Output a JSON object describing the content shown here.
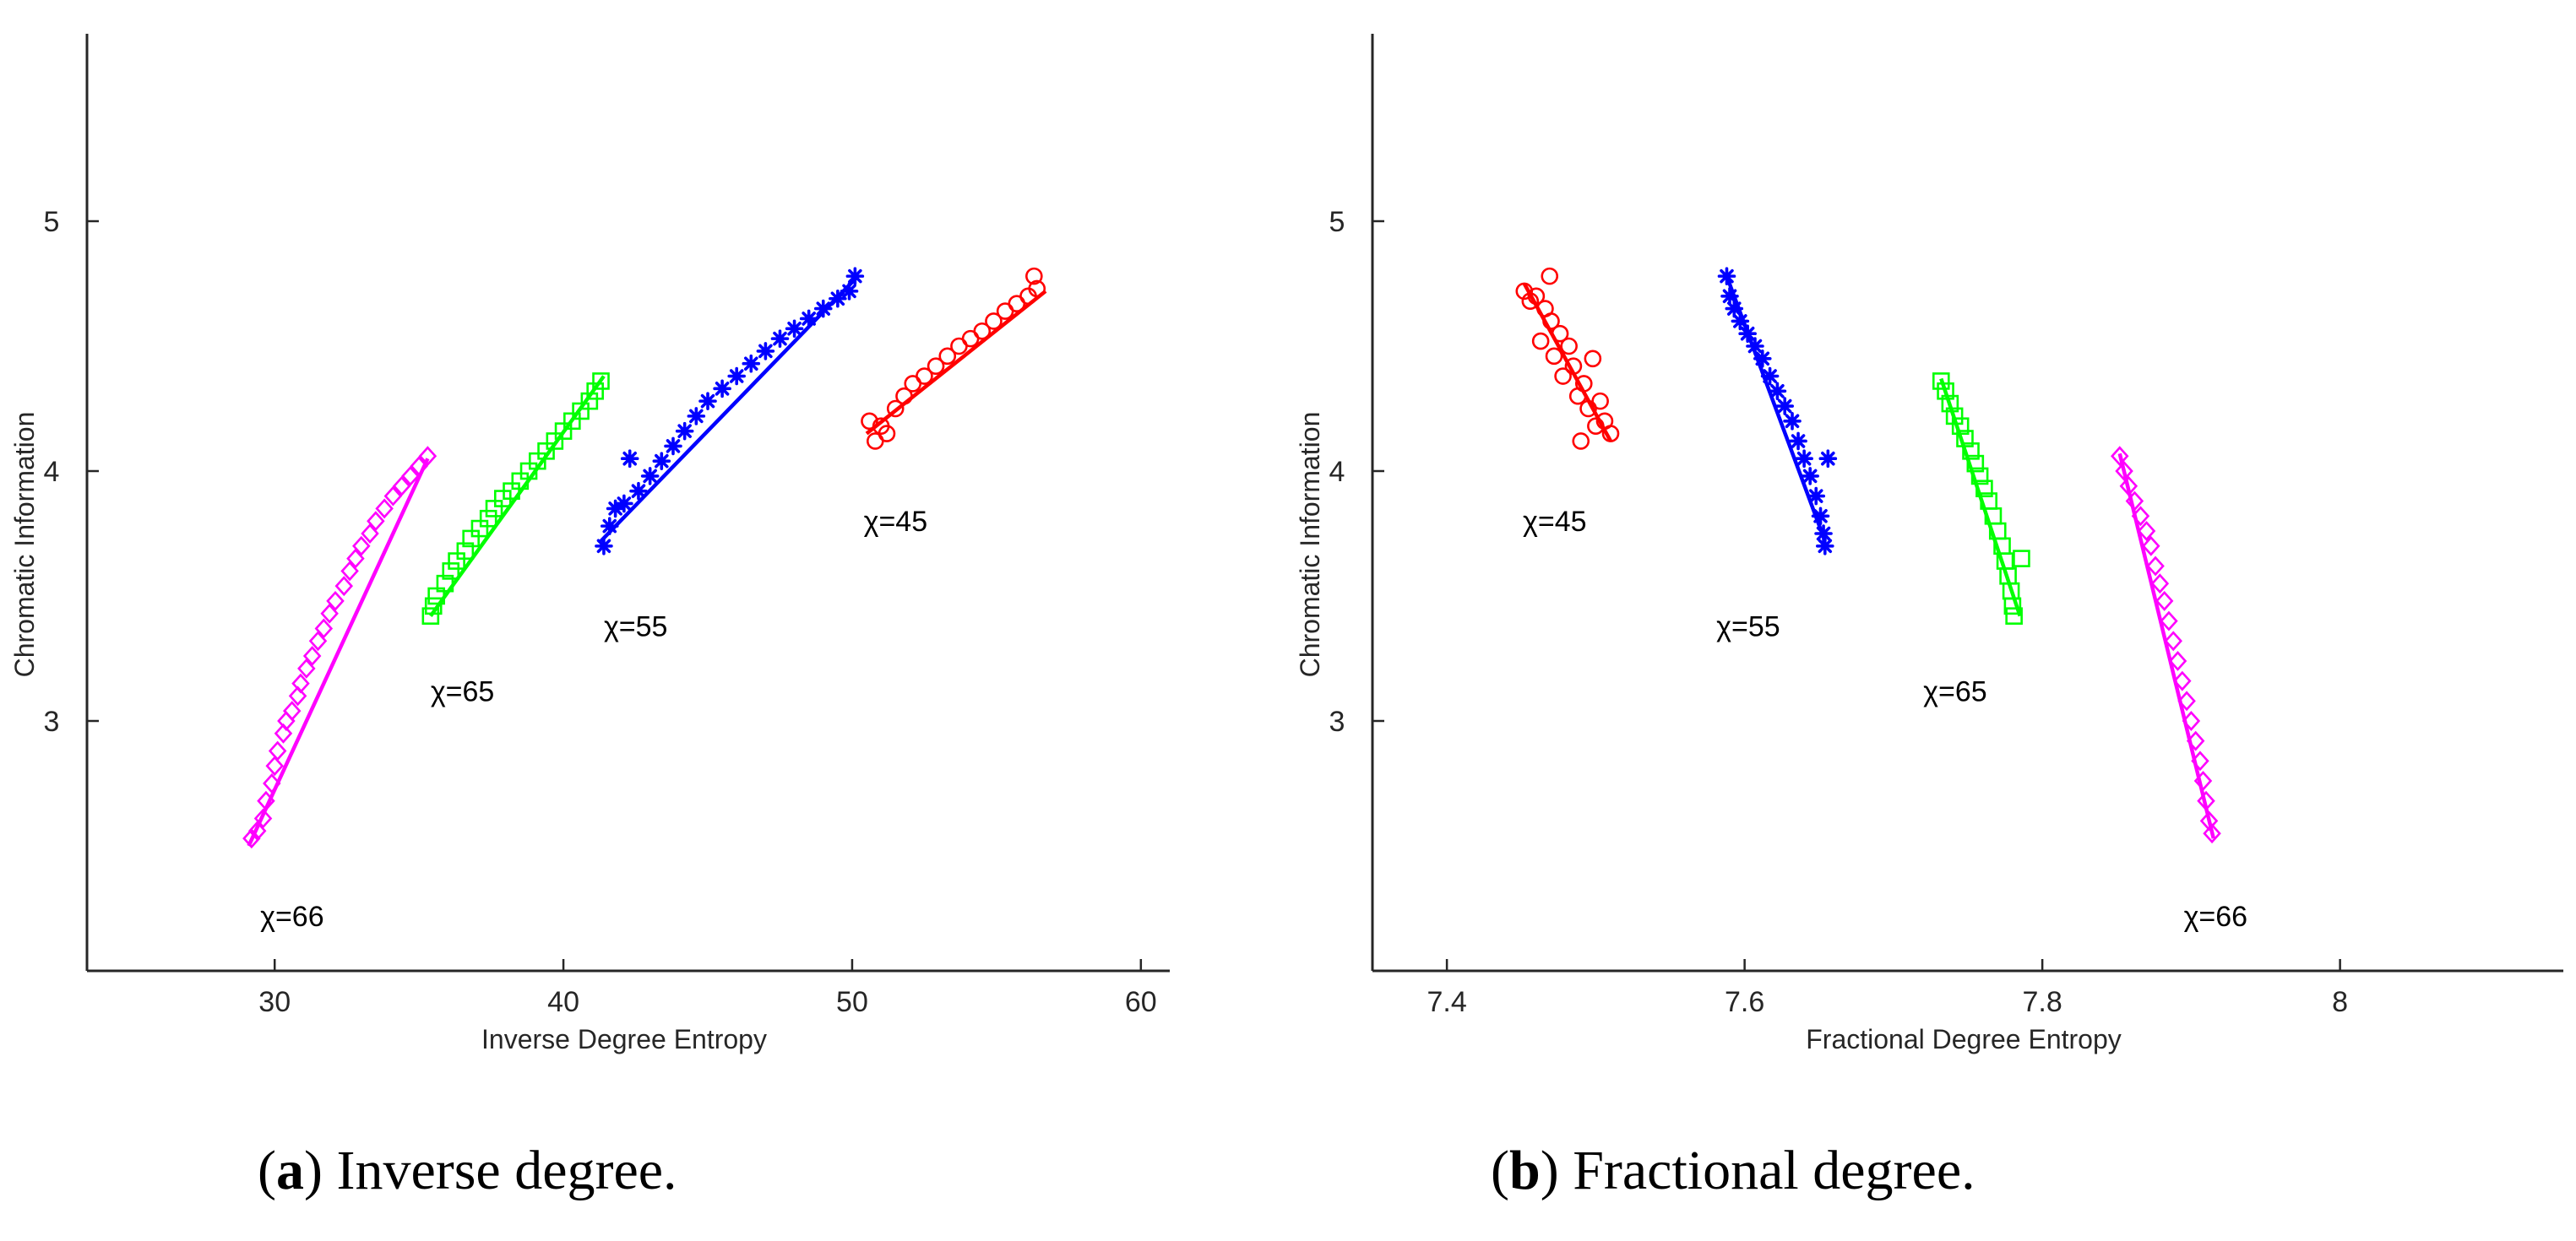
{
  "chart_data": [
    {
      "type": "scatter",
      "caption": {
        "tag": "a",
        "text": "Inverse degree."
      },
      "xlabel": "Inverse Degree Entropy",
      "ylabel": "Chromatic Information",
      "xlim": [
        23.5,
        61
      ],
      "ylim": [
        2,
        5.75
      ],
      "xticks": [
        30,
        40,
        50,
        60
      ],
      "yticks": [
        3,
        4,
        5
      ],
      "xtick_labels": [
        "30",
        "40",
        "50",
        "60"
      ],
      "ytick_labels": [
        "3",
        "4",
        "5"
      ],
      "series": [
        {
          "name": "χ=66",
          "label": "χ=66",
          "marker": "diamond",
          "color": "#ff00ff",
          "label_pos": [
            29.5,
            2.22
          ],
          "fit": [
            [
              29.1,
              2.5
            ],
            [
              35.3,
              4.05
            ]
          ],
          "points": [
            [
              29.2,
              2.53
            ],
            [
              29.4,
              2.56
            ],
            [
              29.6,
              2.61
            ],
            [
              29.7,
              2.68
            ],
            [
              29.9,
              2.75
            ],
            [
              30.0,
              2.82
            ],
            [
              30.1,
              2.88
            ],
            [
              30.3,
              2.95
            ],
            [
              30.4,
              3.0
            ],
            [
              30.6,
              3.04
            ],
            [
              30.8,
              3.1
            ],
            [
              30.9,
              3.15
            ],
            [
              31.1,
              3.21
            ],
            [
              31.3,
              3.26
            ],
            [
              31.5,
              3.32
            ],
            [
              31.7,
              3.37
            ],
            [
              31.9,
              3.43
            ],
            [
              32.1,
              3.48
            ],
            [
              32.4,
              3.54
            ],
            [
              32.6,
              3.6
            ],
            [
              32.8,
              3.65
            ],
            [
              33.0,
              3.7
            ],
            [
              33.3,
              3.75
            ],
            [
              33.5,
              3.8
            ],
            [
              33.8,
              3.85
            ],
            [
              34.1,
              3.9
            ],
            [
              34.4,
              3.94
            ],
            [
              34.7,
              3.98
            ],
            [
              35.0,
              4.02
            ],
            [
              35.3,
              4.06
            ]
          ]
        },
        {
          "name": "χ=65",
          "label": "χ=65",
          "marker": "square",
          "color": "#00ff00",
          "label_pos": [
            35.4,
            3.12
          ],
          "fit": [
            [
              35.4,
              3.42
            ],
            [
              41.4,
              4.38
            ]
          ],
          "points": [
            [
              35.4,
              3.42
            ],
            [
              35.5,
              3.46
            ],
            [
              35.6,
              3.5
            ],
            [
              35.9,
              3.55
            ],
            [
              36.1,
              3.6
            ],
            [
              36.3,
              3.64
            ],
            [
              36.6,
              3.68
            ],
            [
              36.8,
              3.73
            ],
            [
              37.1,
              3.77
            ],
            [
              37.4,
              3.81
            ],
            [
              37.6,
              3.85
            ],
            [
              37.9,
              3.89
            ],
            [
              38.2,
              3.92
            ],
            [
              38.5,
              3.96
            ],
            [
              38.8,
              4.0
            ],
            [
              39.1,
              4.04
            ],
            [
              39.4,
              4.08
            ],
            [
              39.7,
              4.12
            ],
            [
              40.0,
              4.16
            ],
            [
              40.3,
              4.2
            ],
            [
              40.6,
              4.24
            ],
            [
              40.9,
              4.28
            ],
            [
              41.1,
              4.32
            ],
            [
              41.3,
              4.36
            ]
          ]
        },
        {
          "name": "χ=55",
          "label": "χ=55",
          "marker": "asterisk",
          "color": "#0000ff",
          "label_pos": [
            41.4,
            3.38
          ],
          "fit": [
            [
              41.3,
              3.72
            ],
            [
              50.2,
              4.78
            ]
          ],
          "points": [
            [
              41.4,
              3.7
            ],
            [
              41.6,
              3.78
            ],
            [
              41.8,
              3.85
            ],
            [
              42.1,
              3.87
            ],
            [
              42.3,
              4.05
            ],
            [
              42.6,
              3.92
            ],
            [
              43.0,
              3.98
            ],
            [
              43.4,
              4.04
            ],
            [
              43.8,
              4.1
            ],
            [
              44.2,
              4.16
            ],
            [
              44.6,
              4.22
            ],
            [
              45.0,
              4.28
            ],
            [
              45.5,
              4.33
            ],
            [
              46.0,
              4.38
            ],
            [
              46.5,
              4.43
            ],
            [
              47.0,
              4.48
            ],
            [
              47.5,
              4.53
            ],
            [
              48.0,
              4.57
            ],
            [
              48.5,
              4.61
            ],
            [
              49.0,
              4.65
            ],
            [
              49.5,
              4.69
            ],
            [
              49.9,
              4.72
            ],
            [
              50.1,
              4.78
            ]
          ]
        },
        {
          "name": "χ=45",
          "label": "χ=45",
          "marker": "circle",
          "color": "#ff0000",
          "label_pos": [
            50.4,
            3.8
          ],
          "fit": [
            [
              50.5,
              4.15
            ],
            [
              56.7,
              4.72
            ]
          ],
          "points": [
            [
              50.6,
              4.2
            ],
            [
              50.8,
              4.12
            ],
            [
              51.0,
              4.18
            ],
            [
              51.2,
              4.15
            ],
            [
              51.5,
              4.25
            ],
            [
              51.8,
              4.3
            ],
            [
              52.1,
              4.35
            ],
            [
              52.5,
              4.38
            ],
            [
              52.9,
              4.42
            ],
            [
              53.3,
              4.46
            ],
            [
              53.7,
              4.5
            ],
            [
              54.1,
              4.53
            ],
            [
              54.5,
              4.56
            ],
            [
              54.9,
              4.6
            ],
            [
              55.3,
              4.64
            ],
            [
              55.7,
              4.67
            ],
            [
              56.1,
              4.7
            ],
            [
              56.4,
              4.73
            ],
            [
              56.3,
              4.78
            ]
          ]
        }
      ]
    },
    {
      "type": "scatter",
      "caption": {
        "tag": "b",
        "text": "Fractional degree."
      },
      "xlabel": "Fractional Degree Entropy",
      "ylabel": "Chromatic Information",
      "xlim": [
        7.35,
        8.15
      ],
      "ylim": [
        2,
        5.75
      ],
      "xticks": [
        7.4,
        7.6,
        7.8,
        8
      ],
      "yticks": [
        3,
        4,
        5
      ],
      "xtick_labels": [
        "7.4",
        "7.6",
        "7.8",
        "8"
      ],
      "ytick_labels": [
        "3",
        "4",
        "5"
      ],
      "series": [
        {
          "name": "χ=45",
          "label": "χ=45",
          "marker": "circle",
          "color": "#ff0000",
          "label_pos": [
            7.451,
            3.8
          ],
          "fit": [
            [
              7.452,
              4.75
            ],
            [
              7.51,
              4.12
            ]
          ],
          "points": [
            [
              7.452,
              4.72
            ],
            [
              7.456,
              4.68
            ],
            [
              7.46,
              4.7
            ],
            [
              7.463,
              4.52
            ],
            [
              7.466,
              4.65
            ],
            [
              7.47,
              4.6
            ],
            [
              7.472,
              4.46
            ],
            [
              7.476,
              4.55
            ],
            [
              7.478,
              4.38
            ],
            [
              7.482,
              4.5
            ],
            [
              7.485,
              4.42
            ],
            [
              7.488,
              4.3
            ],
            [
              7.49,
              4.12
            ],
            [
              7.492,
              4.35
            ],
            [
              7.495,
              4.25
            ],
            [
              7.498,
              4.45
            ],
            [
              7.5,
              4.18
            ],
            [
              7.503,
              4.28
            ],
            [
              7.506,
              4.2
            ],
            [
              7.51,
              4.15
            ],
            [
              7.469,
              4.78
            ]
          ]
        },
        {
          "name": "χ=55",
          "label": "χ=55",
          "marker": "asterisk",
          "color": "#0000ff",
          "label_pos": [
            7.581,
            3.38
          ],
          "fit": [
            [
              7.588,
              4.78
            ],
            [
              7.654,
              3.72
            ]
          ],
          "points": [
            [
              7.588,
              4.78
            ],
            [
              7.59,
              4.7
            ],
            [
              7.593,
              4.65
            ],
            [
              7.597,
              4.6
            ],
            [
              7.602,
              4.55
            ],
            [
              7.607,
              4.5
            ],
            [
              7.612,
              4.45
            ],
            [
              7.617,
              4.38
            ],
            [
              7.622,
              4.32
            ],
            [
              7.627,
              4.26
            ],
            [
              7.632,
              4.2
            ],
            [
              7.636,
              4.12
            ],
            [
              7.64,
              4.05
            ],
            [
              7.644,
              3.98
            ],
            [
              7.648,
              3.9
            ],
            [
              7.651,
              3.82
            ],
            [
              7.653,
              3.75
            ],
            [
              7.654,
              3.7
            ],
            [
              7.656,
              4.05
            ]
          ]
        },
        {
          "name": "χ=65",
          "label": "χ=65",
          "marker": "square",
          "color": "#00ff00",
          "label_pos": [
            7.72,
            3.12
          ],
          "fit": [
            [
              7.732,
              4.37
            ],
            [
              7.785,
              3.42
            ]
          ],
          "points": [
            [
              7.732,
              4.36
            ],
            [
              7.735,
              4.32
            ],
            [
              7.738,
              4.27
            ],
            [
              7.741,
              4.22
            ],
            [
              7.745,
              4.18
            ],
            [
              7.748,
              4.13
            ],
            [
              7.752,
              4.08
            ],
            [
              7.755,
              4.03
            ],
            [
              7.758,
              3.98
            ],
            [
              7.761,
              3.93
            ],
            [
              7.764,
              3.88
            ],
            [
              7.767,
              3.82
            ],
            [
              7.77,
              3.76
            ],
            [
              7.773,
              3.7
            ],
            [
              7.775,
              3.64
            ],
            [
              7.777,
              3.58
            ],
            [
              7.779,
              3.52
            ],
            [
              7.78,
              3.46
            ],
            [
              7.781,
              3.42
            ],
            [
              7.786,
              3.65
            ]
          ]
        },
        {
          "name": "χ=66",
          "label": "χ=66",
          "marker": "diamond",
          "color": "#ff00ff",
          "label_pos": [
            7.895,
            2.22
          ],
          "fit": [
            [
              7.852,
              4.07
            ],
            [
              7.915,
              2.53
            ]
          ],
          "points": [
            [
              7.852,
              4.06
            ],
            [
              7.855,
              4.0
            ],
            [
              7.858,
              3.94
            ],
            [
              7.862,
              3.88
            ],
            [
              7.866,
              3.82
            ],
            [
              7.87,
              3.76
            ],
            [
              7.873,
              3.7
            ],
            [
              7.876,
              3.62
            ],
            [
              7.879,
              3.55
            ],
            [
              7.882,
              3.48
            ],
            [
              7.885,
              3.4
            ],
            [
              7.888,
              3.32
            ],
            [
              7.891,
              3.24
            ],
            [
              7.894,
              3.16
            ],
            [
              7.897,
              3.08
            ],
            [
              7.9,
              3.0
            ],
            [
              7.903,
              2.92
            ],
            [
              7.906,
              2.84
            ],
            [
              7.908,
              2.76
            ],
            [
              7.91,
              2.68
            ],
            [
              7.912,
              2.6
            ],
            [
              7.914,
              2.55
            ]
          ]
        }
      ]
    }
  ]
}
